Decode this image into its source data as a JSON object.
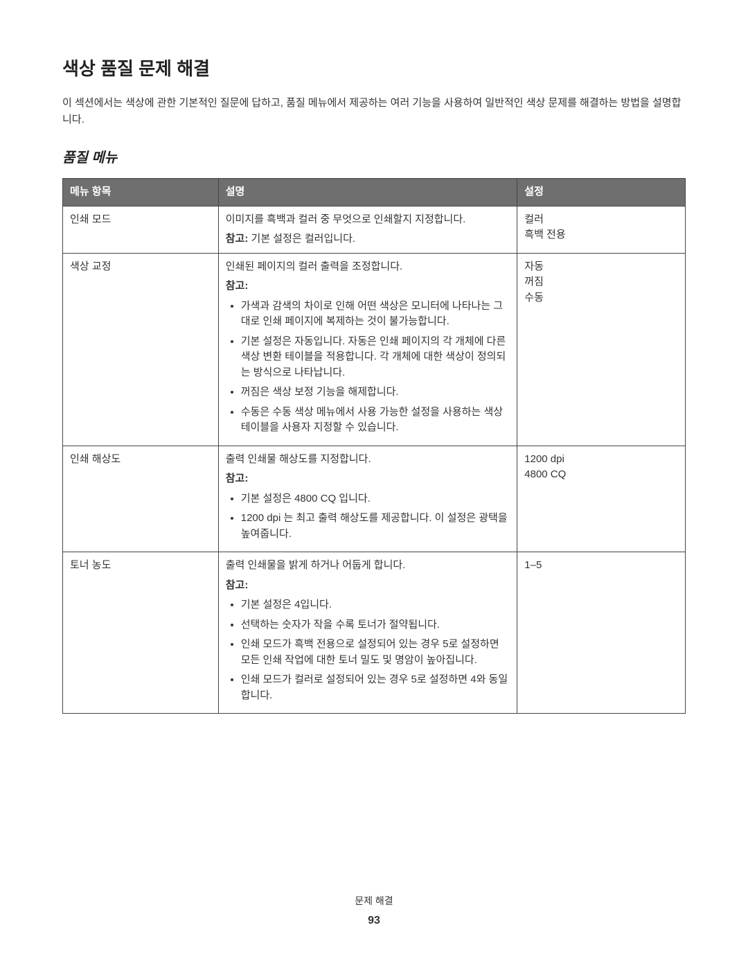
{
  "heading": "색상 품질 문제 해결",
  "intro": "이 섹션에서는 색상에 관한 기본적인 질문에 답하고, 품질 메뉴에서 제공하는 여러 기능을 사용하여 일반적인 색상 문제를 해결하는 방법을 설명합니다.",
  "subheading": "품질 메뉴",
  "headers": {
    "col1": "메뉴 항목",
    "col2": "설명",
    "col3": "설정"
  },
  "rows": {
    "r0": {
      "menu": "인쇄 모드",
      "desc_line": "이미지를 흑백과 컬러 중 무엇으로 인쇄할지 지정합니다.",
      "note_label": "참고:",
      "note_text": " 기본 설정은 컬러입니다.",
      "setting1": "컬러",
      "setting2": "흑백 전용"
    },
    "r1": {
      "menu": "색상 교정",
      "desc_line": "인쇄된 페이지의 컬러 출력을 조정합니다.",
      "note_label": "참고:",
      "b0": "가색과 감색의 차이로 인해 어떤 색상은 모니터에 나타나는 그대로 인쇄 페이지에 복제하는 것이 불가능합니다.",
      "b1": "기본 설정은 자동입니다. 자동은 인쇄 페이지의 각 개체에 다른 색상 변환 테이블을 적용합니다. 각 개체에 대한 색상이 정의되는 방식으로 나타납니다.",
      "b2": "꺼짐은 색상 보정 기능을 해제합니다.",
      "b3": "수동은 수동 색상 메뉴에서 사용 가능한 설정을 사용하는 색상 테이블을 사용자 지정할 수 있습니다.",
      "setting1": "자동",
      "setting2": "꺼짐",
      "setting3": "수동"
    },
    "r2": {
      "menu": "인쇄 해상도",
      "desc_line": "출력 인쇄물 해상도를 지정합니다.",
      "note_label": "참고:",
      "b0": "기본 설정은 4800 CQ 입니다.",
      "b1": "1200 dpi 는 최고 출력 해상도를 제공합니다. 이 설정은 광택을 높여줍니다.",
      "setting1": "1200 dpi",
      "setting2": "4800 CQ"
    },
    "r3": {
      "menu": "토너 농도",
      "desc_line": "출력 인쇄물을 밝게 하거나 어둡게 합니다.",
      "note_label": "참고:",
      "b0": "기본 설정은 4입니다.",
      "b1": "선택하는 숫자가 작을 수록 토너가 절약됩니다.",
      "b2": "인쇄 모드가 흑백 전용으로 설정되어 있는 경우 5로 설정하면 모든 인쇄 작업에 대한 토너 밀도 및 명암이 높아집니다.",
      "b3": "인쇄 모드가 컬러로 설정되어 있는 경우 5로 설정하면 4와 동일합니다.",
      "setting1": "1–5"
    }
  },
  "footer": "문제 해결",
  "page_number": "93"
}
